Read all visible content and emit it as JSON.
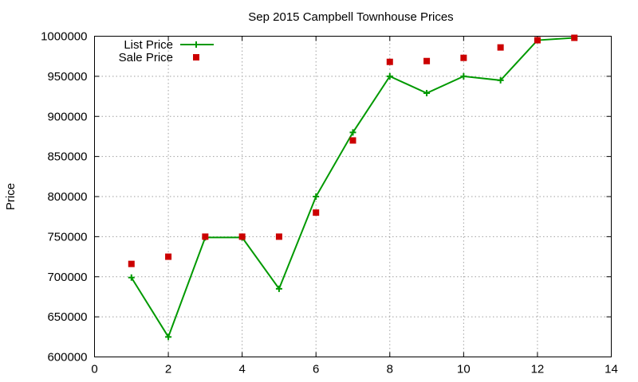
{
  "chart_data": {
    "type": "scatter",
    "title": "Sep 2015 Campbell Townhouse Prices",
    "xlabel": "",
    "ylabel": "Price",
    "xlim": [
      0,
      14
    ],
    "ylim": [
      600000,
      1000000
    ],
    "x_ticks": [
      0,
      2,
      4,
      6,
      8,
      10,
      12,
      14
    ],
    "y_ticks": [
      600000,
      650000,
      700000,
      750000,
      800000,
      850000,
      900000,
      950000,
      1000000
    ],
    "grid": true,
    "legend_position": "top-left",
    "series": [
      {
        "name": "List Price",
        "style": "line+cross",
        "color": "#009900",
        "x": [
          1,
          2,
          3,
          4,
          5,
          6,
          7,
          8,
          9,
          10,
          11,
          12,
          13
        ],
        "y": [
          699000,
          625000,
          749000,
          749000,
          685000,
          800000,
          880000,
          950000,
          929000,
          950000,
          945000,
          995000,
          998000
        ]
      },
      {
        "name": "Sale Price",
        "style": "square",
        "color": "#cc0000",
        "x": [
          1,
          2,
          3,
          4,
          5,
          6,
          7,
          8,
          9,
          10,
          11,
          12,
          13
        ],
        "y": [
          716000,
          725000,
          750000,
          750000,
          750000,
          780000,
          870000,
          968000,
          969000,
          973000,
          986000,
          995000,
          998000
        ]
      }
    ]
  }
}
